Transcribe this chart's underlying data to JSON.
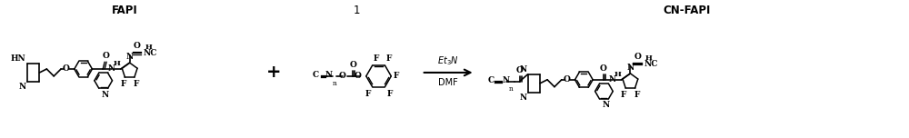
{
  "background_color": "#ffffff",
  "figsize": [
    10.0,
    1.52
  ],
  "dpi": 100,
  "label_fapi": "FAPI",
  "label_1": "1",
  "label_cn_fapi": "CN-FAPI",
  "arrow_label_top": "Et$_3$N",
  "arrow_label_bottom": "DMF"
}
